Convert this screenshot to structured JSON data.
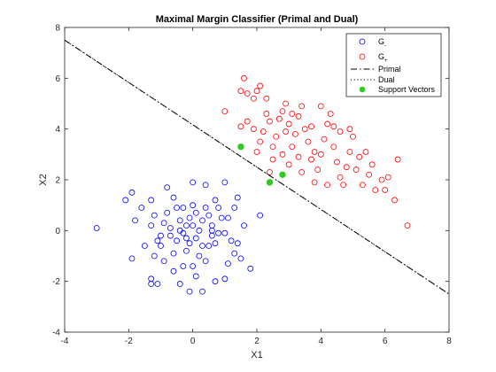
{
  "chart_data": {
    "type": "scatter",
    "title": "Maximal Margin Classifier (Primal and Dual)",
    "xlabel": "X1",
    "ylabel": "X2",
    "xlim": [
      -4,
      8
    ],
    "ylim": [
      -4,
      8
    ],
    "xticks": [
      -4,
      -2,
      0,
      2,
      4,
      6,
      8
    ],
    "yticks": [
      -4,
      -2,
      0,
      2,
      4,
      6,
      8
    ],
    "grid": false,
    "legend_position": "top-right",
    "legend": [
      {
        "key": "gminus",
        "base": "G",
        "sub": "-"
      },
      {
        "key": "gplus",
        "base": "G",
        "sub": "+"
      },
      {
        "key": "primal",
        "label": "Primal"
      },
      {
        "key": "dual",
        "label": "Dual"
      },
      {
        "key": "sv",
        "label": "Support Vectors"
      }
    ],
    "colors": {
      "gminus": "#0000ff",
      "gplus": "#ff0000",
      "lines": "#000000",
      "sv": "#2ecc1f",
      "axes": "#262626"
    },
    "series": [
      {
        "key": "gminus",
        "marker": "circle-open",
        "points": [
          [
            -3.0,
            0.1
          ],
          [
            -1.9,
            1.5
          ],
          [
            -2.1,
            1.2
          ],
          [
            -1.6,
            0.9
          ],
          [
            -1.9,
            -1.1
          ],
          [
            -1.3,
            1.2
          ],
          [
            -1.2,
            0.6
          ],
          [
            -1.3,
            0.2
          ],
          [
            -1.1,
            -0.4
          ],
          [
            -1.0,
            -0.6
          ],
          [
            -0.8,
            1.7
          ],
          [
            -0.6,
            1.3
          ],
          [
            -0.5,
            0.9
          ],
          [
            -0.3,
            0.9
          ],
          [
            -0.8,
            0.7
          ],
          [
            -0.9,
            0.3
          ],
          [
            -1.0,
            -0.2
          ],
          [
            -0.7,
            -0.2
          ],
          [
            -0.6,
            -0.9
          ],
          [
            -0.9,
            -1.2
          ],
          [
            -1.3,
            -1.9
          ],
          [
            -1.3,
            -2.1
          ],
          [
            -1.1,
            -2.1
          ],
          [
            -0.6,
            -1.6
          ],
          [
            -0.4,
            -2.1
          ],
          [
            -0.3,
            -1.4
          ],
          [
            -0.2,
            -0.8
          ],
          [
            -0.4,
            0.4
          ],
          [
            -0.3,
            -0.1
          ],
          [
            -0.1,
            0.5
          ],
          [
            0.0,
            1.0
          ],
          [
            0.1,
            0.7
          ],
          [
            0.0,
            0.2
          ],
          [
            0.1,
            -0.3
          ],
          [
            -0.1,
            -0.5
          ],
          [
            0.2,
            -1.0
          ],
          [
            0.0,
            -1.4
          ],
          [
            0.1,
            -1.8
          ],
          [
            -0.1,
            -2.4
          ],
          [
            0.3,
            -2.4
          ],
          [
            0.3,
            0.4
          ],
          [
            0.4,
            0.9
          ],
          [
            0.5,
            0.6
          ],
          [
            0.6,
            0.2
          ],
          [
            0.6,
            -0.2
          ],
          [
            0.5,
            -0.6
          ],
          [
            0.7,
            -0.5
          ],
          [
            0.8,
            -0.1
          ],
          [
            0.9,
            0.5
          ],
          [
            0.8,
            0.9
          ],
          [
            0.7,
            1.2
          ],
          [
            1.0,
            1.9
          ],
          [
            1.4,
            1.3
          ],
          [
            1.3,
            0.9
          ],
          [
            1.1,
            0.5
          ],
          [
            1.0,
            -0.1
          ],
          [
            1.2,
            -0.4
          ],
          [
            1.3,
            -0.9
          ],
          [
            1.1,
            -1.3
          ],
          [
            1.0,
            -1.9
          ],
          [
            0.7,
            -2.0
          ],
          [
            1.8,
            -1.5
          ],
          [
            1.4,
            -0.5
          ],
          [
            2.1,
            0.6
          ],
          [
            0.4,
            1.8
          ],
          [
            0.0,
            1.9
          ],
          [
            -0.4,
            0.0
          ],
          [
            -0.2,
            0.2
          ],
          [
            0.2,
            0.0
          ],
          [
            0.3,
            -0.6
          ],
          [
            -0.5,
            -0.4
          ],
          [
            -0.7,
            0.1
          ],
          [
            1.6,
            0.2
          ],
          [
            1.5,
            -1.1
          ],
          [
            -1.8,
            0.4
          ],
          [
            -1.5,
            -0.6
          ],
          [
            -0.2,
            -0.3
          ],
          [
            0.4,
            -1.2
          ],
          [
            0.6,
            0.0
          ],
          [
            -1.2,
            -1.0
          ]
        ]
      },
      {
        "key": "gplus",
        "marker": "circle-open",
        "points": [
          [
            1.0,
            4.7
          ],
          [
            1.5,
            5.5
          ],
          [
            1.6,
            6.0
          ],
          [
            1.7,
            5.4
          ],
          [
            1.9,
            5.2
          ],
          [
            2.0,
            5.5
          ],
          [
            2.1,
            5.7
          ],
          [
            1.7,
            4.3
          ],
          [
            1.9,
            4.0
          ],
          [
            2.1,
            3.5
          ],
          [
            2.2,
            3.9
          ],
          [
            2.0,
            3.1
          ],
          [
            2.4,
            2.3
          ],
          [
            2.5,
            3.3
          ],
          [
            2.6,
            3.7
          ],
          [
            2.7,
            4.4
          ],
          [
            2.8,
            4.7
          ],
          [
            2.9,
            5.0
          ],
          [
            3.0,
            4.2
          ],
          [
            2.8,
            3.0
          ],
          [
            3.0,
            2.6
          ],
          [
            3.1,
            3.3
          ],
          [
            3.2,
            3.8
          ],
          [
            3.3,
            4.5
          ],
          [
            3.4,
            4.9
          ],
          [
            3.5,
            4.0
          ],
          [
            3.6,
            3.5
          ],
          [
            3.7,
            2.8
          ],
          [
            3.8,
            1.9
          ],
          [
            3.9,
            2.4
          ],
          [
            4.0,
            3.0
          ],
          [
            4.1,
            3.6
          ],
          [
            4.2,
            4.2
          ],
          [
            4.3,
            4.6
          ],
          [
            4.0,
            4.9
          ],
          [
            4.4,
            3.3
          ],
          [
            4.5,
            2.7
          ],
          [
            4.6,
            2.1
          ],
          [
            4.7,
            1.8
          ],
          [
            4.8,
            2.5
          ],
          [
            4.9,
            3.1
          ],
          [
            5.0,
            3.7
          ],
          [
            5.1,
            2.4
          ],
          [
            5.2,
            2.9
          ],
          [
            5.3,
            1.8
          ],
          [
            5.5,
            2.2
          ],
          [
            5.6,
            2.6
          ],
          [
            5.7,
            1.6
          ],
          [
            5.9,
            2.0
          ],
          [
            6.0,
            1.6
          ],
          [
            6.1,
            2.1
          ],
          [
            6.3,
            1.2
          ],
          [
            6.4,
            2.8
          ],
          [
            6.7,
            0.2
          ],
          [
            2.3,
            4.6
          ],
          [
            3.1,
            4.6
          ],
          [
            3.7,
            4.1
          ],
          [
            4.4,
            4.1
          ],
          [
            4.9,
            4.0
          ],
          [
            5.4,
            3.1
          ],
          [
            2.5,
            2.8
          ],
          [
            3.3,
            2.9
          ],
          [
            4.2,
            1.8
          ],
          [
            3.8,
            3.1
          ],
          [
            2.9,
            3.9
          ],
          [
            1.5,
            4.1
          ],
          [
            2.3,
            5.2
          ],
          [
            2.4,
            4.3
          ],
          [
            4.6,
            3.9
          ],
          [
            3.4,
            2.3
          ]
        ]
      }
    ],
    "lines": [
      {
        "key": "primal",
        "style": "dashdot",
        "points": [
          [
            -4,
            7.5
          ],
          [
            8,
            -2.5
          ]
        ]
      },
      {
        "key": "dual",
        "style": "dotted",
        "points": [
          [
            -4,
            7.5
          ],
          [
            8,
            -2.5
          ]
        ]
      }
    ],
    "support_vectors": [
      [
        1.5,
        3.3
      ],
      [
        2.4,
        1.9
      ],
      [
        2.8,
        2.2
      ]
    ]
  }
}
